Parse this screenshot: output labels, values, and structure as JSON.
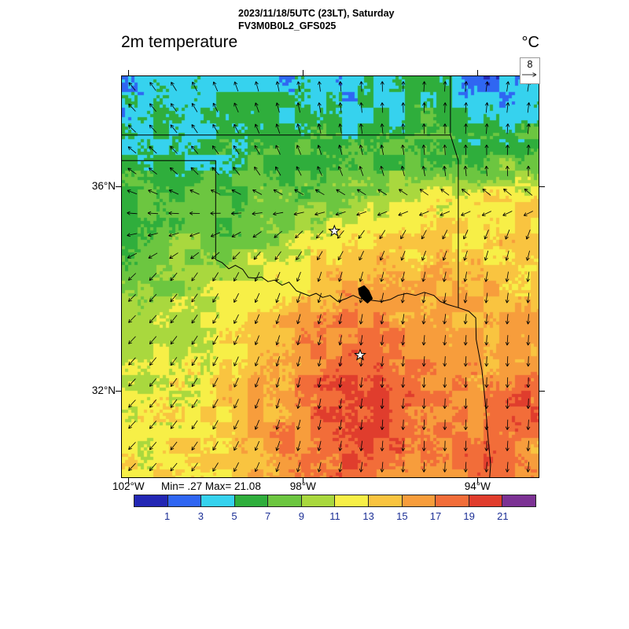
{
  "header": {
    "line1": "2023/11/18/5UTC (23LT), Saturday",
    "line2": "FV3M0B0L2_GFS025"
  },
  "labels": {
    "field_title": "2m temperature",
    "units": "°C",
    "minmax": "Min= .27 Max= 21.08",
    "ref_value": "8"
  },
  "axes": {
    "extent": {
      "lon_west": 102.15,
      "lon_east": 92.6,
      "lat_north": 38.15,
      "lat_south": 30.3
    },
    "lat_ticks": [
      {
        "label": "36°N",
        "lat": 36
      },
      {
        "label": "32°N",
        "lat": 32
      }
    ],
    "lon_ticks": [
      {
        "label": "102°W",
        "lon": 102
      },
      {
        "label": "98°W",
        "lon": 98
      },
      {
        "label": "94°W",
        "lon": 94
      }
    ]
  },
  "chart_data": {
    "type": "heatmap",
    "title": "2m temperature",
    "units": "°C",
    "min": 0.27,
    "max": 21.08,
    "wind_reference": 8,
    "colorbar": {
      "levels": [
        1,
        3,
        5,
        7,
        9,
        11,
        13,
        15,
        17,
        19,
        21
      ],
      "colors": [
        "#2327b4",
        "#2f66f2",
        "#36d2ee",
        "#2fae3c",
        "#6cc640",
        "#a9d83e",
        "#f7ef47",
        "#f9c440",
        "#f79d3c",
        "#f26d39",
        "#e03d2d",
        "#7c3294"
      ],
      "label_color": "#1d3096"
    },
    "grid": {
      "lons_w": [
        102.15,
        101.51,
        100.88,
        100.24,
        99.6,
        98.97,
        98.33,
        97.69,
        97.06,
        96.42,
        95.78,
        95.15,
        94.51,
        93.87,
        93.24,
        92.6
      ],
      "lats_n": [
        38.15,
        37.55,
        36.95,
        36.34,
        35.74,
        35.14,
        34.53,
        33.93,
        33.33,
        32.72,
        32.12,
        31.52,
        30.91,
        30.31
      ],
      "values": [
        [
          4,
          4,
          3,
          4,
          4,
          5,
          4,
          4,
          3,
          4,
          5,
          5,
          4,
          2,
          3,
          4
        ],
        [
          4,
          5,
          4,
          4,
          5,
          5,
          5,
          5,
          4,
          5,
          5,
          6,
          5,
          4,
          4,
          5
        ],
        [
          5,
          5,
          5,
          5,
          6,
          6,
          6,
          6,
          6,
          6,
          7,
          7,
          6,
          6,
          6,
          7
        ],
        [
          6,
          6,
          6,
          6,
          6,
          7,
          7,
          7,
          7,
          7,
          8,
          8,
          8,
          8,
          9,
          9
        ],
        [
          7,
          7,
          7,
          7,
          7,
          8,
          8,
          8,
          9,
          10,
          11,
          12,
          12,
          13,
          13,
          13
        ],
        [
          7,
          7,
          8,
          8,
          8,
          9,
          10,
          11,
          12,
          13,
          13,
          13,
          13,
          13,
          13,
          13
        ],
        [
          8,
          8,
          9,
          9,
          10,
          11,
          12,
          13,
          14,
          14,
          14,
          14,
          14,
          14,
          14,
          13
        ],
        [
          9,
          9,
          10,
          10,
          11,
          12,
          13,
          15,
          16,
          16,
          15,
          15,
          15,
          15,
          14,
          14
        ],
        [
          10,
          10,
          10,
          11,
          12,
          14,
          15,
          16,
          17,
          17,
          16,
          16,
          15,
          15,
          15,
          15
        ],
        [
          10,
          11,
          11,
          12,
          13,
          15,
          16,
          17,
          18,
          19,
          17,
          16,
          16,
          15,
          16,
          16
        ],
        [
          11,
          11,
          12,
          12,
          14,
          15,
          16,
          18,
          19,
          19,
          18,
          17,
          16,
          16,
          17,
          19
        ],
        [
          12,
          12,
          12,
          13,
          14,
          15,
          16,
          18,
          19,
          20,
          18,
          17,
          16,
          17,
          19,
          18
        ],
        [
          12,
          12,
          13,
          13,
          14,
          15,
          17,
          18,
          19,
          19,
          18,
          18,
          18,
          18,
          17,
          16
        ],
        [
          12,
          13,
          13,
          13,
          14,
          15,
          16,
          17,
          18,
          18,
          17,
          16,
          16,
          18,
          17,
          16
        ]
      ]
    },
    "wind_angles_deg": [
      [
        130,
        120,
        110,
        100,
        95,
        90,
        85,
        82,
        80
      ],
      [
        138,
        128,
        118,
        108,
        100,
        95,
        90,
        86,
        84
      ],
      [
        148,
        140,
        132,
        122,
        115,
        108,
        100,
        95,
        90
      ],
      [
        185,
        190,
        200,
        215,
        225,
        235,
        240,
        245,
        248
      ],
      [
        222,
        230,
        240,
        248,
        252,
        256,
        258,
        260,
        262
      ],
      [
        225,
        232,
        242,
        252,
        258,
        262,
        264,
        265,
        266
      ],
      [
        226,
        234,
        244,
        254,
        260,
        265,
        267,
        268,
        268
      ],
      [
        226,
        232,
        242,
        252,
        260,
        266,
        268,
        268,
        266
      ],
      [
        225,
        230,
        240,
        250,
        258,
        264,
        268,
        266,
        264
      ]
    ],
    "overlays": {
      "borders": [
        {
          "name": "kansas-oklahoma",
          "points": [
            [
              102.15,
              37.0
            ],
            [
              94.62,
              37.0
            ]
          ]
        },
        {
          "name": "kansas-missouri",
          "points": [
            [
              94.62,
              38.15
            ],
            [
              94.62,
              37.0
            ]
          ]
        },
        {
          "name": "oklahoma-arkansas",
          "points": [
            [
              94.62,
              37.0
            ],
            [
              94.44,
              36.5
            ],
            [
              94.44,
              33.62
            ]
          ]
        },
        {
          "name": "oklahoma-panhandle-texas",
          "points": [
            [
              102.15,
              36.5
            ],
            [
              100.0,
              36.5
            ],
            [
              100.0,
              34.56
            ]
          ]
        },
        {
          "name": "red-river",
          "points": [
            [
              100.0,
              34.56
            ],
            [
              99.85,
              34.5
            ],
            [
              99.7,
              34.38
            ],
            [
              99.55,
              34.45
            ],
            [
              99.38,
              34.37
            ],
            [
              99.25,
              34.21
            ],
            [
              99.1,
              34.2
            ],
            [
              98.95,
              34.22
            ],
            [
              98.8,
              34.13
            ],
            [
              98.65,
              34.16
            ],
            [
              98.48,
              34.06
            ],
            [
              98.32,
              34.12
            ],
            [
              98.15,
              33.95
            ],
            [
              98.0,
              33.9
            ],
            [
              97.85,
              33.85
            ],
            [
              97.7,
              33.9
            ],
            [
              97.55,
              33.82
            ],
            [
              97.38,
              33.86
            ],
            [
              97.2,
              33.74
            ],
            [
              97.0,
              33.8
            ],
            [
              96.85,
              33.86
            ],
            [
              96.7,
              33.8
            ],
            [
              96.55,
              33.78
            ],
            [
              96.38,
              33.76
            ],
            [
              96.2,
              33.74
            ],
            [
              96.0,
              33.78
            ],
            [
              95.82,
              33.86
            ],
            [
              95.62,
              33.9
            ],
            [
              95.42,
              33.86
            ],
            [
              95.22,
              33.92
            ],
            [
              95.0,
              33.86
            ],
            [
              94.85,
              33.74
            ],
            [
              94.68,
              33.68
            ],
            [
              94.44,
              33.62
            ]
          ]
        },
        {
          "name": "texas-arkansas-louisiana",
          "points": [
            [
              94.44,
              33.62
            ],
            [
              94.2,
              33.55
            ],
            [
              94.04,
              33.42
            ],
            [
              94.03,
              33.0
            ],
            [
              93.9,
              32.4
            ],
            [
              93.82,
              31.75
            ],
            [
              93.76,
              31.1
            ],
            [
              93.7,
              30.55
            ],
            [
              93.72,
              30.3
            ]
          ]
        }
      ],
      "lake": {
        "name": "lake-texoma",
        "points": [
          [
            96.72,
            33.99
          ],
          [
            96.6,
            34.04
          ],
          [
            96.5,
            33.95
          ],
          [
            96.42,
            33.8
          ],
          [
            96.52,
            33.72
          ],
          [
            96.63,
            33.8
          ],
          [
            96.7,
            33.88
          ]
        ]
      },
      "stars": [
        {
          "lon": 97.28,
          "lat": 35.12
        },
        {
          "lon": 96.69,
          "lat": 32.69
        }
      ]
    }
  }
}
